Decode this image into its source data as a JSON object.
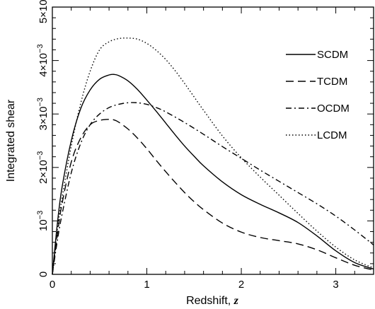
{
  "chart_data": {
    "type": "line",
    "xlabel": "Redshift, ",
    "xlabel_symbol": "z",
    "ylabel": "Integrated shear",
    "xlim": [
      0,
      3.4
    ],
    "ylim": [
      0,
      0.005
    ],
    "grid": false,
    "legend_position": "top-right",
    "x_ticks": [
      {
        "value": 0,
        "label": "0"
      },
      {
        "value": 1,
        "label": "1"
      },
      {
        "value": 2,
        "label": "2"
      },
      {
        "value": 3,
        "label": "3"
      }
    ],
    "y_ticks": [
      {
        "value": 0,
        "label": "0",
        "exp": ""
      },
      {
        "value": 0.001,
        "label": "10",
        "exp": "−3"
      },
      {
        "value": 0.002,
        "label": "2×10",
        "exp": "−3"
      },
      {
        "value": 0.003,
        "label": "3×10",
        "exp": "−3"
      },
      {
        "value": 0.004,
        "label": "4×10",
        "exp": "−3"
      },
      {
        "value": 0.005,
        "label": "5×10",
        "exp": "−3"
      }
    ],
    "series": [
      {
        "name": "SCDM",
        "dash": "solid",
        "x": [
          0,
          0.05,
          0.1,
          0.2,
          0.3,
          0.4,
          0.5,
          0.6,
          0.65,
          0.7,
          0.8,
          0.9,
          1.0,
          1.1,
          1.2,
          1.3,
          1.4,
          1.5,
          1.6,
          1.8,
          2.0,
          2.2,
          2.4,
          2.6,
          2.8,
          3.0,
          3.2,
          3.4
        ],
        "y": [
          0,
          0.0009,
          0.0016,
          0.0025,
          0.0031,
          0.00345,
          0.00365,
          0.00373,
          0.00374,
          0.00372,
          0.00362,
          0.00346,
          0.00326,
          0.00305,
          0.00283,
          0.00261,
          0.0024,
          0.00221,
          0.00203,
          0.00173,
          0.00149,
          0.00131,
          0.00115,
          0.00097,
          0.00072,
          0.00044,
          0.00022,
          0.0001
        ]
      },
      {
        "name": "TCDM",
        "dash": "dashed",
        "x": [
          0,
          0.05,
          0.1,
          0.2,
          0.3,
          0.4,
          0.5,
          0.6,
          0.65,
          0.7,
          0.8,
          0.9,
          1.0,
          1.1,
          1.2,
          1.3,
          1.4,
          1.5,
          1.6,
          1.8,
          2.0,
          2.2,
          2.4,
          2.6,
          2.8,
          3.0,
          3.2,
          3.4
        ],
        "y": [
          0,
          0.0007,
          0.0013,
          0.0021,
          0.00255,
          0.0028,
          0.00288,
          0.0029,
          0.00289,
          0.00285,
          0.00272,
          0.00255,
          0.00235,
          0.00213,
          0.00192,
          0.00172,
          0.00153,
          0.00136,
          0.00121,
          0.00096,
          0.00079,
          0.00069,
          0.00063,
          0.00057,
          0.00046,
          0.00031,
          0.00017,
          8e-05
        ]
      },
      {
        "name": "OCDM",
        "dash": "dashdot",
        "x": [
          0,
          0.05,
          0.1,
          0.2,
          0.3,
          0.4,
          0.5,
          0.6,
          0.7,
          0.8,
          0.9,
          1.0,
          1.1,
          1.2,
          1.4,
          1.6,
          1.8,
          2.0,
          2.2,
          2.4,
          2.6,
          2.8,
          3.0,
          3.2,
          3.4
        ],
        "y": [
          0,
          0.0006,
          0.0011,
          0.0019,
          0.00245,
          0.0028,
          0.003,
          0.00312,
          0.00318,
          0.00321,
          0.00321,
          0.00318,
          0.00312,
          0.00304,
          0.00284,
          0.00262,
          0.00239,
          0.00217,
          0.00195,
          0.00174,
          0.00153,
          0.00132,
          0.00109,
          0.00083,
          0.00055
        ]
      },
      {
        "name": "LCDM",
        "dash": "dotted",
        "x": [
          0,
          0.05,
          0.1,
          0.2,
          0.3,
          0.4,
          0.5,
          0.6,
          0.7,
          0.8,
          0.9,
          1.0,
          1.1,
          1.2,
          1.3,
          1.4,
          1.5,
          1.6,
          1.8,
          2.0,
          2.2,
          2.4,
          2.6,
          2.8,
          3.0,
          3.2,
          3.4
        ],
        "y": [
          0,
          0.0008,
          0.0014,
          0.0024,
          0.0032,
          0.0038,
          0.0042,
          0.00435,
          0.00441,
          0.00442,
          0.0044,
          0.00432,
          0.00419,
          0.00402,
          0.00381,
          0.00357,
          0.00332,
          0.00307,
          0.00259,
          0.00218,
          0.00182,
          0.00148,
          0.00114,
          0.00081,
          0.00051,
          0.00027,
          0.00012
        ]
      }
    ]
  }
}
